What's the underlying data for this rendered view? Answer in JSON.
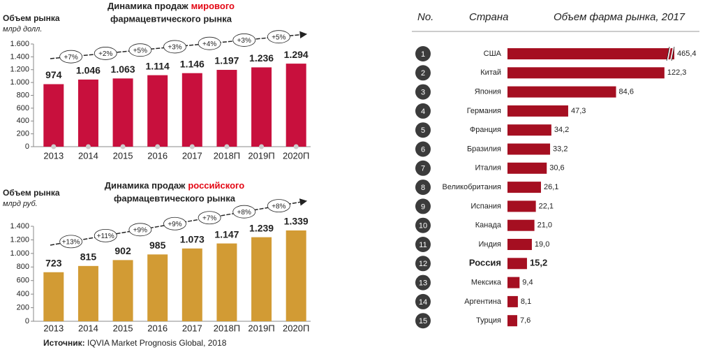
{
  "chart_data": [
    {
      "type": "bar",
      "title": "Динамика продаж",
      "title_highlight": "мирового",
      "title_line2": "фармацевтического рынка",
      "ylabel": "Объем рынка",
      "yunit": "млрд долл.",
      "categories": [
        "2013",
        "2014",
        "2015",
        "2016",
        "2017",
        "2018П",
        "2019П",
        "2020П"
      ],
      "values": [
        974,
        1046,
        1063,
        1114,
        1146,
        1197,
        1236,
        1294
      ],
      "value_labels": [
        "974",
        "1.046",
        "1.063",
        "1.114",
        "1.146",
        "1.197",
        "1.236",
        "1.294"
      ],
      "color": "#c8103d",
      "highlight_color": "#e30613",
      "ylim": [
        0,
        1600
      ],
      "yticks": [
        0,
        200,
        400,
        600,
        800,
        {
          "value": 1000,
          "label": "1.000"
        },
        {
          "value": 1200,
          "label": "1.200"
        },
        {
          "value": 1400,
          "label": "1.400"
        },
        {
          "value": 1600,
          "label": "1.600"
        }
      ],
      "annotations": [
        "+7%",
        "+2%",
        "+5%",
        "+3%",
        "+4%",
        "+3%",
        "+5%"
      ]
    },
    {
      "type": "bar",
      "title": "Динамика продаж",
      "title_highlight": "российского",
      "title_line2": "фармацевтического рынка",
      "ylabel": "Объем рынка",
      "yunit": "млрд руб.",
      "categories": [
        "2013",
        "2014",
        "2015",
        "2016",
        "2017",
        "2018П",
        "2019П",
        "2020П"
      ],
      "values": [
        723,
        815,
        902,
        985,
        1073,
        1147,
        1239,
        1339
      ],
      "value_labels": [
        "723",
        "815",
        "902",
        "985",
        "1.073",
        "1.147",
        "1.239",
        "1.339"
      ],
      "color": "#d29b34",
      "highlight_color": "#e30613",
      "ylim": [
        0,
        1400
      ],
      "yticks": [
        0,
        200,
        400,
        600,
        800,
        {
          "value": 1000,
          "label": "1.000"
        },
        {
          "value": 1200,
          "label": "1.200"
        },
        {
          "value": 1400,
          "label": "1.400"
        }
      ],
      "annotations": [
        "+13%",
        "+11%",
        "+9%",
        "+9%",
        "+7%",
        "+8%",
        "+8%"
      ]
    },
    {
      "type": "hbar",
      "header": [
        "No.",
        "Страна",
        "Объем фарма рынка, 2017"
      ],
      "ranks": [
        1,
        2,
        3,
        4,
        5,
        6,
        7,
        8,
        9,
        10,
        11,
        12,
        13,
        14,
        15
      ],
      "categories": [
        "США",
        "Китай",
        "Япония",
        "Германия",
        "Франция",
        "Бразилия",
        "Италия",
        "Великобритания",
        "Испания",
        "Канада",
        "Индия",
        "Россия",
        "Мексика",
        "Аргентина",
        "Турция"
      ],
      "values": [
        465.4,
        122.3,
        84.6,
        47.3,
        34.2,
        33.2,
        30.6,
        26.1,
        22.1,
        21.0,
        19.0,
        15.2,
        9.4,
        8.1,
        7.6
      ],
      "value_labels": [
        "465,4",
        "122,3",
        "84,6",
        "47,3",
        "34,2",
        "33,2",
        "30,6",
        "26,1",
        "22,1",
        "21,0",
        "19,0",
        "15,2",
        "9,4",
        "8,1",
        "7,6"
      ],
      "color": "#a50f21",
      "xlim": [
        0,
        130
      ],
      "axis_break": true,
      "bold_category": "Россия"
    }
  ],
  "source_label": "Источник:",
  "source": "IQVIA Market Prognosis Global, 2018"
}
